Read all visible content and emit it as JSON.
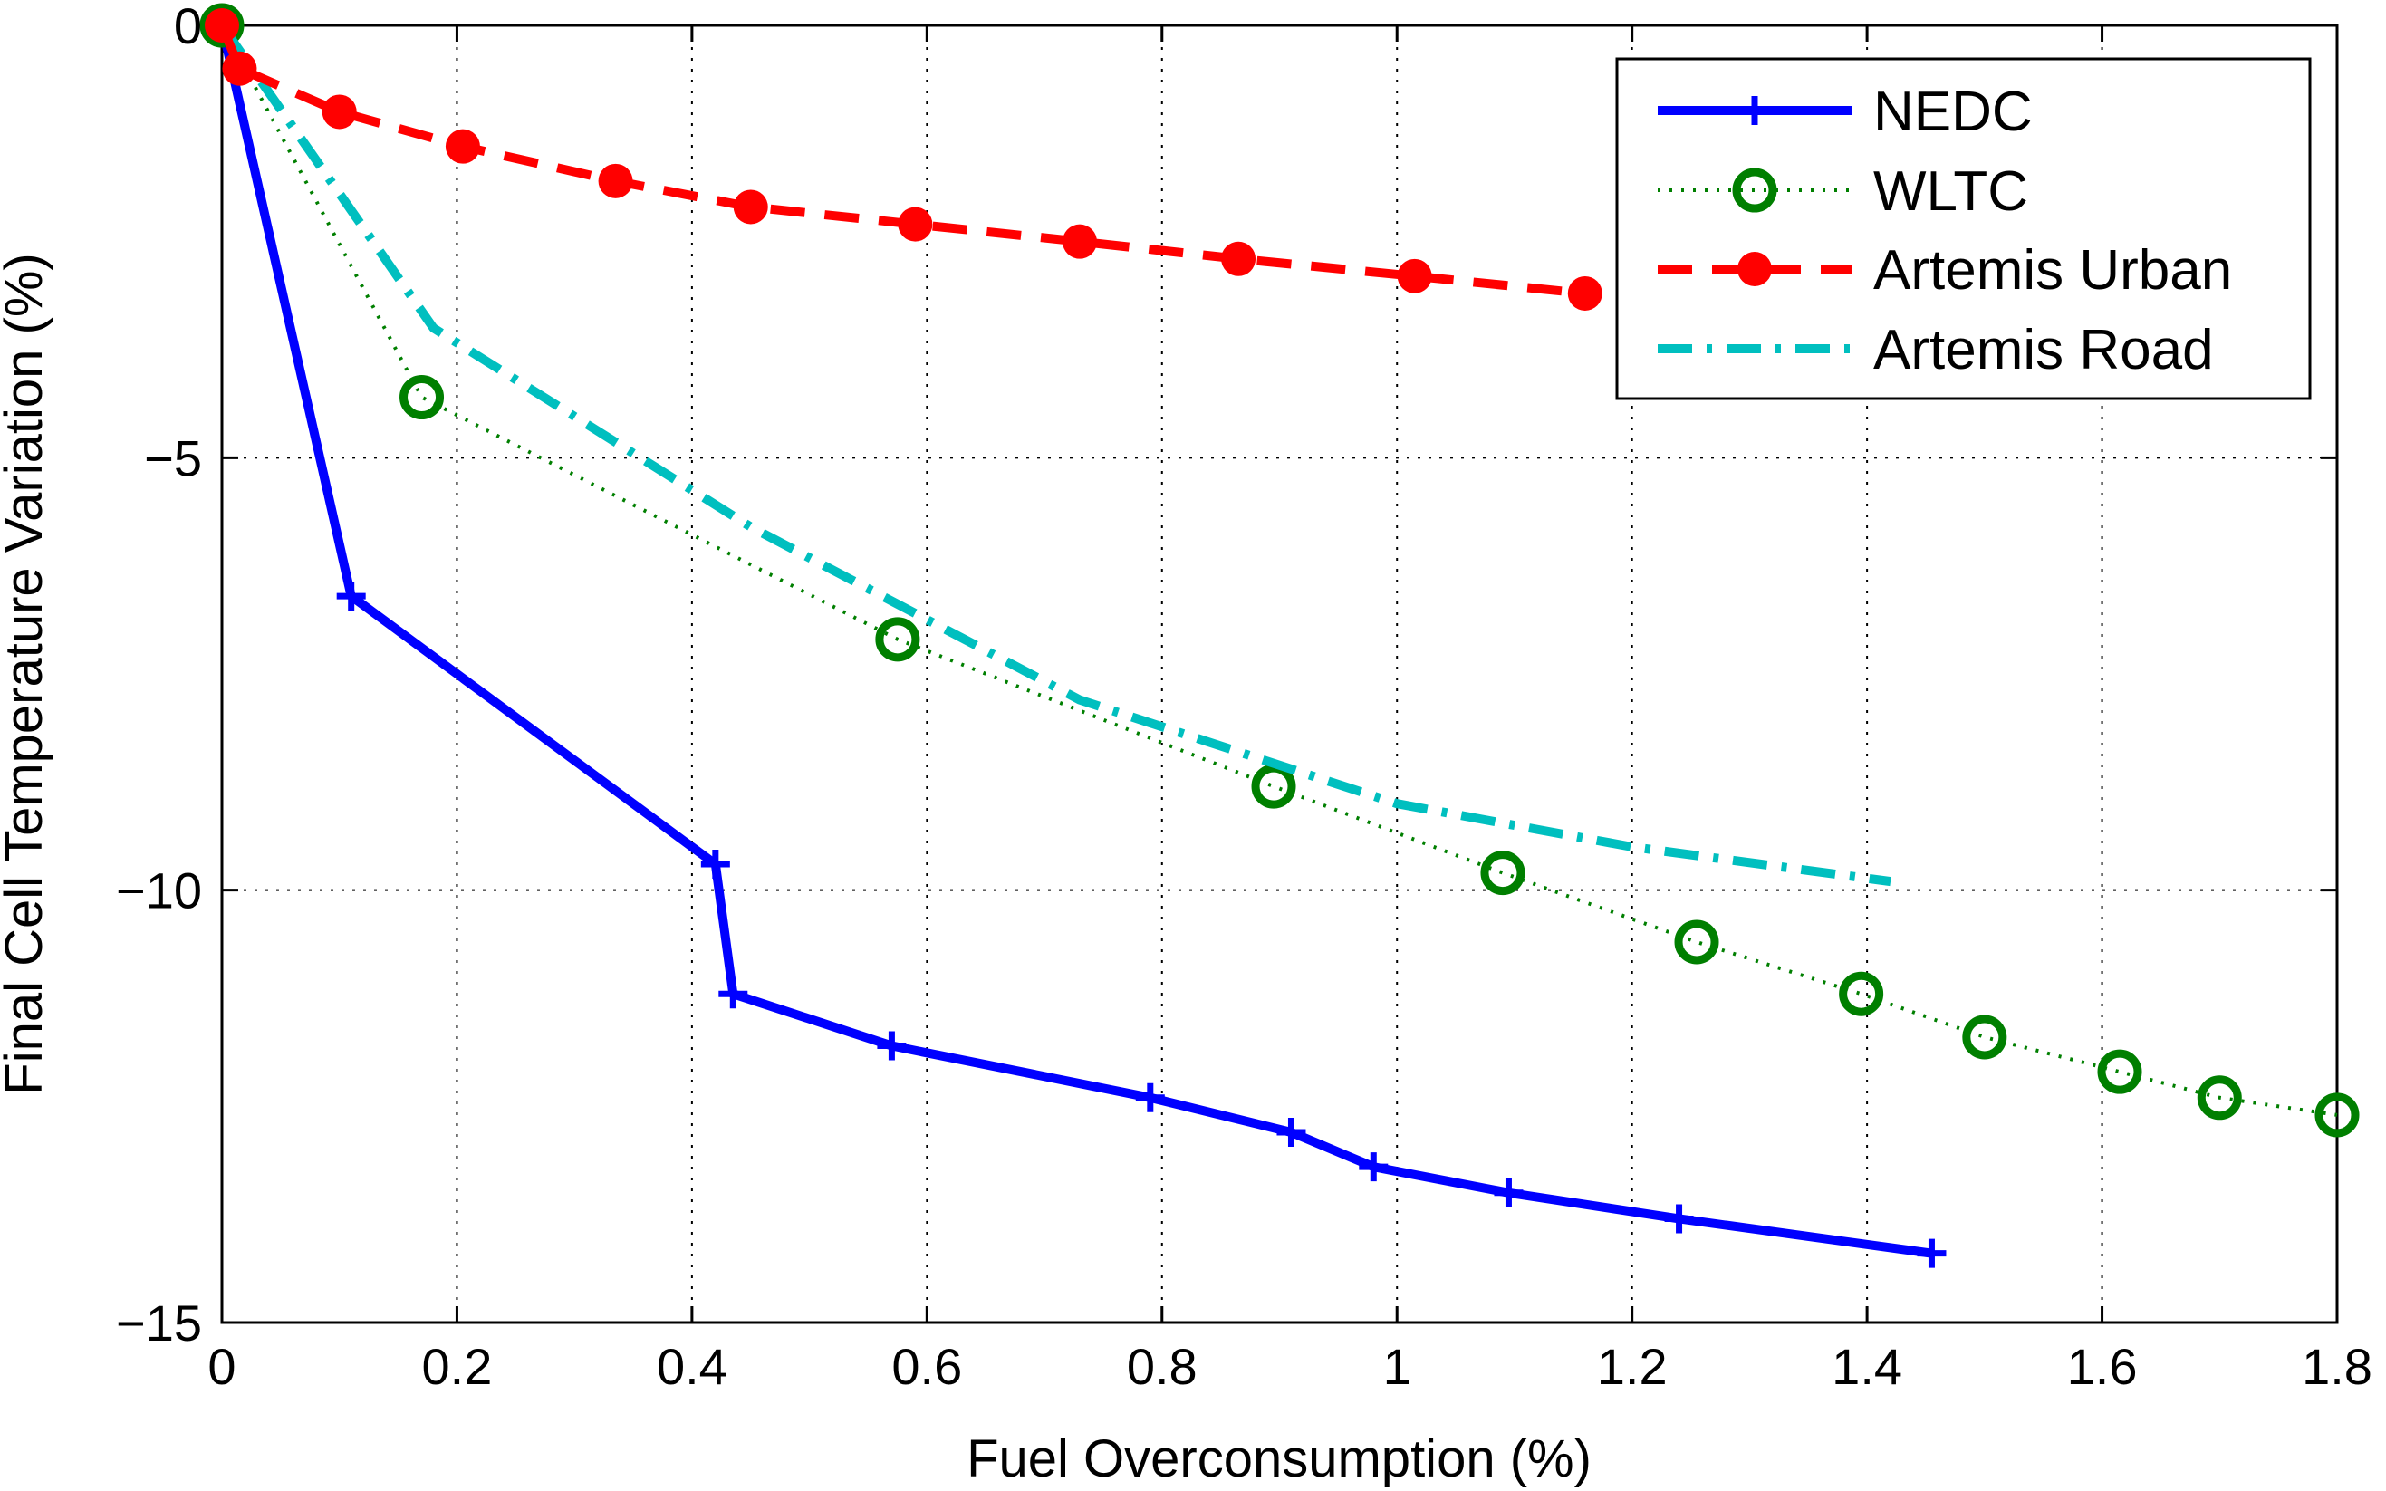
{
  "chart_data": {
    "type": "line",
    "title": "",
    "xlabel": "Fuel Overconsumption (%)",
    "ylabel": "Final Cell Temperature Variation (%)",
    "xlim": [
      0,
      1.8
    ],
    "ylim": [
      -15,
      0
    ],
    "xticks": [
      0,
      0.2,
      0.4,
      0.6,
      0.8,
      1.0,
      1.2,
      1.4,
      1.6,
      1.8
    ],
    "xtick_labels": [
      "0",
      "0.2",
      "0.4",
      "0.6",
      "0.8",
      "1",
      "1.2",
      "1.4",
      "1.6",
      "1.8"
    ],
    "yticks": [
      0,
      -5,
      -10,
      -15
    ],
    "ytick_labels": [
      "0",
      "−5",
      "−10",
      "−15"
    ],
    "grid": true,
    "legend_position": "top-right",
    "series": [
      {
        "name": "NEDC",
        "color": "#0000ff",
        "line_style": "solid",
        "marker": "plus",
        "x": [
          0,
          0.11,
          0.42,
          0.435,
          0.57,
          0.79,
          0.91,
          0.98,
          1.095,
          1.24,
          1.455
        ],
        "y": [
          0,
          -6.6,
          -9.7,
          -11.2,
          -11.8,
          -12.4,
          -12.8,
          -13.2,
          -13.5,
          -13.8,
          -14.2
        ]
      },
      {
        "name": "WLTC",
        "color": "#007f00",
        "line_style": "dotted",
        "marker": "circle",
        "x": [
          0,
          0.17,
          0.575,
          0.895,
          1.09,
          1.255,
          1.395,
          1.5,
          1.615,
          1.7,
          1.8
        ],
        "y": [
          0,
          -4.3,
          -7.1,
          -8.8,
          -9.8,
          -10.6,
          -11.2,
          -11.7,
          -12.1,
          -12.4,
          -12.6
        ]
      },
      {
        "name": "Artemis Urban",
        "color": "#ff0000",
        "line_style": "dashed",
        "marker": "dot",
        "x": [
          0,
          0.015,
          0.1,
          0.205,
          0.335,
          0.45,
          0.59,
          0.73,
          0.865,
          1.015,
          1.16
        ],
        "y": [
          0,
          -0.5,
          -1.0,
          -1.4,
          -1.8,
          -2.1,
          -2.3,
          -2.5,
          -2.7,
          -2.9,
          -3.1
        ]
      },
      {
        "name": "Artemis Road",
        "color": "#00bfbf",
        "line_style": "dashdot",
        "marker": "none",
        "x": [
          0,
          0.18,
          0.45,
          0.73,
          1.0,
          1.2,
          1.42
        ],
        "y": [
          0,
          -3.5,
          -5.8,
          -7.8,
          -9.0,
          -9.5,
          -9.9
        ]
      }
    ]
  }
}
